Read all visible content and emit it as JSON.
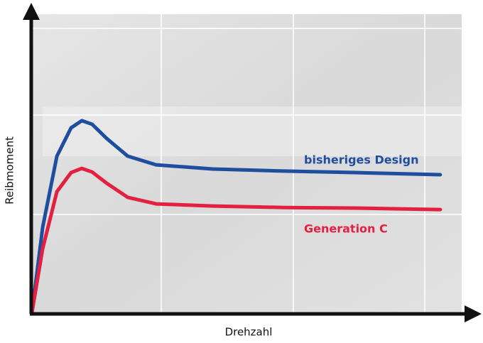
{
  "chart_data": {
    "type": "line",
    "x_label": "Drehzahl",
    "y_label": "Reibmoment",
    "xlim": [
      0,
      100
    ],
    "ylim": [
      0,
      100
    ],
    "x": [
      0,
      2.5,
      5.8,
      9.1,
      11.6,
      14,
      17.4,
      22.3,
      28.9,
      42.1,
      58.7,
      75.2,
      95
    ],
    "series": [
      {
        "name": "bisheriges Design",
        "color": "#1f4e9e",
        "values": [
          0,
          28.6,
          52.4,
          61.9,
          64.3,
          63.1,
          58.3,
          52.4,
          49.5,
          48.1,
          47.4,
          46.9,
          46.2
        ]
      },
      {
        "name": "Generation C",
        "color": "#e3203f",
        "values": [
          0,
          21.4,
          40.5,
          46.9,
          48.3,
          47.1,
          43.3,
          38.6,
          36.4,
          35.7,
          35.2,
          35,
          34.5
        ]
      }
    ]
  }
}
